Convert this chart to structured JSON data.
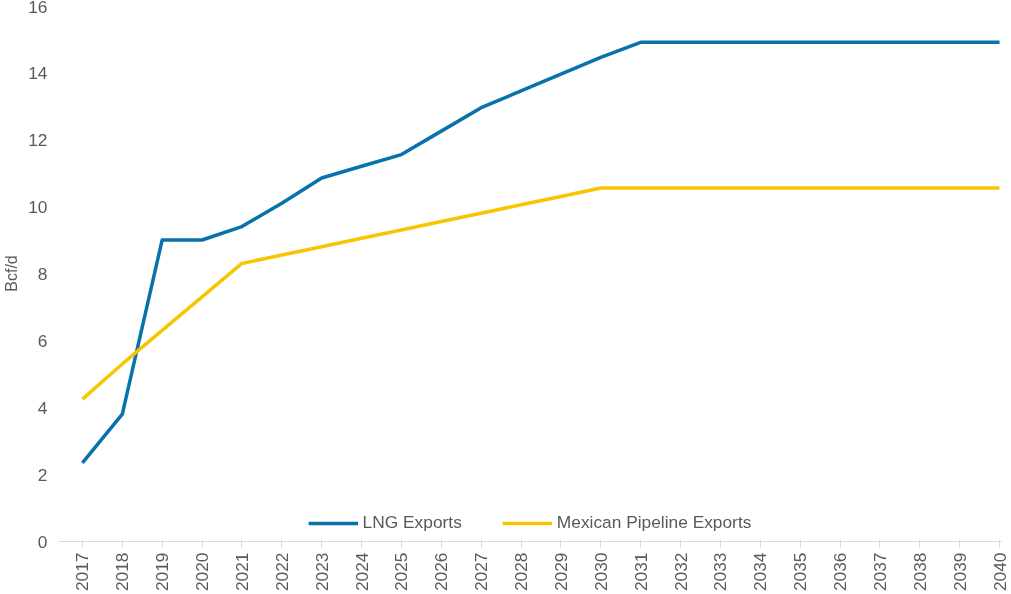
{
  "chart_data": {
    "type": "line",
    "ylabel": "Bcf/d",
    "categories": [
      "2017",
      "2018",
      "2019",
      "2020",
      "2021",
      "2022",
      "2023",
      "2024",
      "2025",
      "2026",
      "2027",
      "2028",
      "2029",
      "2030",
      "2031",
      "2032",
      "2033",
      "2034",
      "2035",
      "2036",
      "2037",
      "2038",
      "2039",
      "2040"
    ],
    "series": [
      {
        "name": "LNG Exports",
        "color": "#0872ab",
        "values": [
          2.35,
          3.8,
          9.0,
          9.0,
          9.4,
          10.1,
          10.85,
          11.2,
          11.55,
          12.25,
          12.95,
          13.45,
          13.95,
          14.45,
          14.9,
          14.9,
          14.9,
          14.9,
          14.9,
          14.9,
          14.9,
          14.9,
          14.9,
          14.9
        ]
      },
      {
        "name": "Mexican Pipeline Exports",
        "color": "#f7c600",
        "values": [
          4.25,
          5.3,
          6.3,
          7.3,
          8.3,
          8.55,
          8.8,
          9.05,
          9.3,
          9.55,
          9.8,
          10.05,
          10.3,
          10.55,
          10.55,
          10.55,
          10.55,
          10.55,
          10.55,
          10.55,
          10.55,
          10.55,
          10.55,
          10.55
        ]
      }
    ],
    "ylim": [
      0,
      16
    ],
    "yticks": [
      0,
      2,
      4,
      6,
      8,
      10,
      12,
      14,
      16
    ],
    "grid": false,
    "legend": "bottom",
    "marker": "none",
    "line_style": "solid"
  }
}
